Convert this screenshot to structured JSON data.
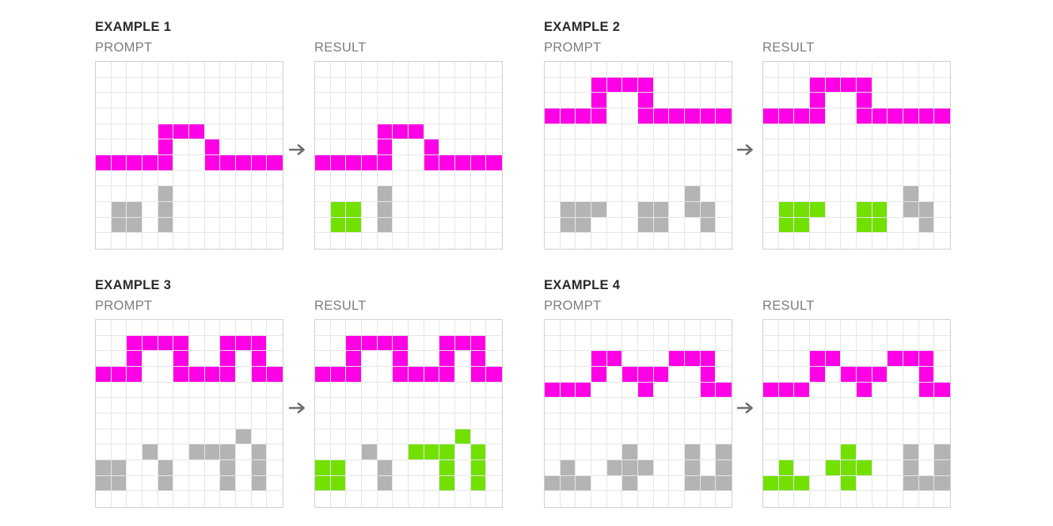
{
  "palette": {
    "0": "#ffffff",
    "1": "#ff00e6",
    "2": "#b4b4b4",
    "3": "#72e000"
  },
  "arrow_icon": "right-arrow-icon",
  "examples": [
    {
      "title": "EXAMPLE 1",
      "prompt_label": "PROMPT",
      "result_label": "RESULT",
      "prompt": [
        "000000000000",
        "000000000000",
        "000000000000",
        "000000000000",
        "000011100000",
        "000010010000",
        "111110011111",
        "000000000000",
        "000020000000",
        "022020000000",
        "022020000000",
        "000000000000"
      ],
      "result": [
        "000000000000",
        "000000000000",
        "000000000000",
        "000000000000",
        "000011100000",
        "000010010000",
        "111110011111",
        "000000000000",
        "000020000000",
        "033020000000",
        "033020000000",
        "000000000000"
      ]
    },
    {
      "title": "EXAMPLE 2",
      "prompt_label": "PROMPT",
      "result_label": "RESULT",
      "prompt": [
        "000000000000",
        "000111100000",
        "000100100000",
        "111100111111",
        "000000000000",
        "000000000000",
        "000000000000",
        "000000000000",
        "000000000200",
        "022200220220",
        "022000220020",
        "000000000000"
      ],
      "result": [
        "000000000000",
        "000111100000",
        "000100100000",
        "111100111111",
        "000000000000",
        "000000000000",
        "000000000000",
        "000000000000",
        "000000000200",
        "033300330220",
        "033000330020",
        "000000000000"
      ]
    },
    {
      "title": "EXAMPLE 3",
      "prompt_label": "PROMPT",
      "result_label": "RESULT",
      "prompt": [
        "000000000000",
        "001111001110",
        "001001001010",
        "111001111011",
        "000000000000",
        "000000000000",
        "000000000000",
        "000000000200",
        "000200222020",
        "220020002020",
        "220020002020",
        "000000000000"
      ],
      "result": [
        "000000000000",
        "001111001110",
        "001001001010",
        "111001111011",
        "000000000000",
        "000000000000",
        "000000000000",
        "000000000300",
        "000200333030",
        "330020003030",
        "330020003030",
        "000000000000"
      ]
    },
    {
      "title": "EXAMPLE 4",
      "prompt_label": "PROMPT",
      "result_label": "RESULT",
      "prompt": [
        "000000000000",
        "000000000000",
        "000110001110",
        "000101110010",
        "111000100011",
        "000000000000",
        "000000000000",
        "000000000000",
        "000002000202",
        "020022200202",
        "222002000222",
        "000000000000"
      ],
      "result": [
        "000000000000",
        "000000000000",
        "000110001110",
        "000101110010",
        "111000100011",
        "000000000000",
        "000000000000",
        "000000000000",
        "000003000202",
        "030033300202",
        "333003000222",
        "000000000000"
      ]
    }
  ]
}
